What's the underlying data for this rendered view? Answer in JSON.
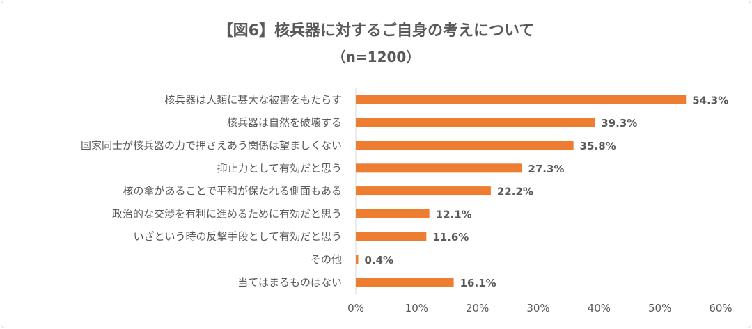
{
  "chart_data": {
    "type": "bar",
    "orientation": "horizontal",
    "title": "【図6】核兵器に対するご自身の考えについて",
    "subtitle": "（n=1200）",
    "categories": [
      "核兵器は人類に甚大な被害をもたらす",
      "核兵器は自然を破壊する",
      "国家同士が核兵器の力で押さえあう関係は望ましくない",
      "抑止力として有効だと思う",
      "核の傘があることで平和が保たれる側面もある",
      "政治的な交渉を有利に進めるために有効だと思う",
      "いざという時の反撃手段として有効だと思う",
      "その他",
      "当てはまるものはない"
    ],
    "values": [
      54.3,
      39.3,
      35.8,
      27.3,
      22.2,
      12.1,
      11.6,
      0.4,
      16.1
    ],
    "data_labels": [
      "54.3%",
      "39.3%",
      "35.8%",
      "27.3%",
      "22.2%",
      "12.1%",
      "11.6%",
      "0.4%",
      "16.1%"
    ],
    "xlim": [
      0,
      60
    ],
    "x_ticks": [
      "0%",
      "10%",
      "20%",
      "30%",
      "40%",
      "50%",
      "60%"
    ],
    "grid": false,
    "bar_color": "#ED7D31",
    "xlabel": "",
    "ylabel": ""
  }
}
